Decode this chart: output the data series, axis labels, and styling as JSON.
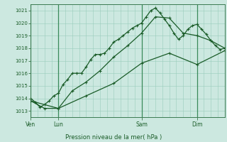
{
  "title": "",
  "xlabel": "Pression niveau de la mer( hPa )",
  "ylabel": "",
  "bg_color": "#cce8e0",
  "grid_color": "#99ccbb",
  "line_color": "#1a5c28",
  "ylim": [
    1012.5,
    1021.5
  ],
  "yticks": [
    1013,
    1014,
    1015,
    1016,
    1017,
    1018,
    1019,
    1020,
    1021
  ],
  "day_labels": [
    "Ven",
    "Lun",
    "Sam",
    "Dim"
  ],
  "day_positions": [
    0,
    24,
    96,
    144
  ],
  "total_hours": 168,
  "series1": {
    "x": [
      0,
      4,
      8,
      12,
      16,
      20,
      24,
      28,
      32,
      36,
      40,
      44,
      48,
      52,
      56,
      60,
      64,
      68,
      72,
      76,
      80,
      84,
      88,
      92,
      96,
      100,
      104,
      108,
      112,
      116,
      120,
      124,
      128,
      132,
      136,
      140,
      144,
      148,
      152,
      156,
      160,
      164,
      168
    ],
    "y": [
      1014.0,
      1013.7,
      1013.3,
      1013.5,
      1013.8,
      1014.2,
      1014.4,
      1015.1,
      1015.5,
      1016.0,
      1016.0,
      1016.0,
      1016.5,
      1017.1,
      1017.5,
      1017.5,
      1017.6,
      1018.0,
      1018.5,
      1018.7,
      1019.0,
      1019.3,
      1019.6,
      1019.8,
      1020.0,
      1020.5,
      1021.0,
      1021.2,
      1020.8,
      1020.3,
      1019.8,
      1019.2,
      1018.7,
      1019.0,
      1019.5,
      1019.8,
      1019.9,
      1019.5,
      1019.1,
      1018.6,
      1018.2,
      1017.9,
      1018.0
    ]
  },
  "series2": {
    "x": [
      0,
      12,
      24,
      36,
      48,
      60,
      72,
      84,
      96,
      108,
      120,
      132,
      144,
      156,
      168
    ],
    "y": [
      1013.8,
      1013.2,
      1013.2,
      1014.6,
      1015.3,
      1016.2,
      1017.3,
      1018.2,
      1019.2,
      1020.5,
      1020.4,
      1019.2,
      1019.0,
      1018.6,
      1018.0
    ]
  },
  "series3": {
    "x": [
      0,
      24,
      48,
      72,
      96,
      120,
      144,
      168
    ],
    "y": [
      1013.8,
      1013.2,
      1014.2,
      1015.2,
      1016.8,
      1017.6,
      1016.7,
      1017.8
    ]
  }
}
